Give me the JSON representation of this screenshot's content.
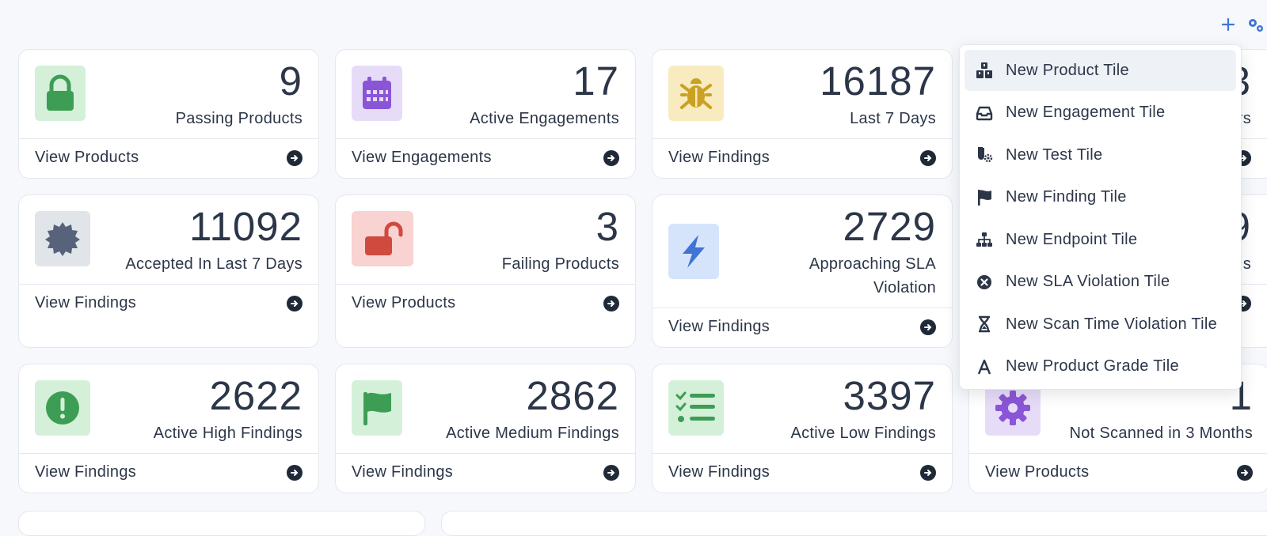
{
  "toolbar": {
    "add_icon": "plus-icon",
    "settings_icon": "gears-icon"
  },
  "tiles": [
    {
      "value": "9",
      "label": "Passing Products",
      "link": "View Products",
      "icon": "lock-icon",
      "icon_bg": "#d4f0d9",
      "icon_color": "#3e9d54"
    },
    {
      "value": "17",
      "label": "Active Engagements",
      "link": "View Engagements",
      "icon": "calendar-icon",
      "icon_bg": "#e7dcf8",
      "icon_color": "#8a55d6"
    },
    {
      "value": "16187",
      "label": "Last 7 Days",
      "link": "View Findings",
      "icon": "bug-icon",
      "icon_bg": "#f7ebbf",
      "icon_color": "#caa123"
    },
    {
      "value": "11092",
      "label": "Accepted In Last 7 Days",
      "link": "View Findings",
      "icon": "certificate-icon",
      "icon_bg": "#e1e4e8",
      "icon_color": "#56637a"
    },
    {
      "value": "3",
      "label": "Failing Products",
      "link": "View Products",
      "icon": "unlock-icon",
      "icon_bg": "#f8d3d1",
      "icon_color": "#d04a3e"
    },
    {
      "value": "2729",
      "label_line1": "Approaching SLA",
      "label_line2": "Violation",
      "link": "View Findings",
      "icon": "bolt-icon",
      "icon_bg": "#d6e4fb",
      "icon_color": "#3f74d6"
    },
    {
      "value": "2622",
      "label": "Active High Findings",
      "link": "View Findings",
      "icon": "exclamation-circle-icon",
      "icon_bg": "#d4f0d9",
      "icon_color": "#3e9d54"
    },
    {
      "value": "2862",
      "label": "Active Medium Findings",
      "link": "View Findings",
      "icon": "flag-icon",
      "icon_bg": "#d4f0d9",
      "icon_color": "#3e9d54"
    },
    {
      "value": "3397",
      "label": "Active Low Findings",
      "link": "View Findings",
      "icon": "list-check-icon",
      "icon_bg": "#d4f0d9",
      "icon_color": "#3e9d54"
    },
    {
      "value": "1",
      "label": "Not Scanned in 3 Months",
      "link": "View Products",
      "icon": "gear-icon",
      "icon_bg": "#e7dcf8",
      "icon_color": "#8a55d6"
    }
  ],
  "partial_tiles": [
    {
      "value_fragment": "3",
      "label_fragment": "rs"
    },
    {
      "value_fragment": "9",
      "label_fragment": "s"
    }
  ],
  "dropdown": {
    "items": [
      {
        "label": "New Product Tile",
        "icon": "cubes-icon",
        "active": true
      },
      {
        "label": "New Engagement Tile",
        "icon": "inbox-icon"
      },
      {
        "label": "New Test Tile",
        "icon": "flask-gear-icon"
      },
      {
        "label": "New Finding Tile",
        "icon": "flag-icon"
      },
      {
        "label": "New Endpoint Tile",
        "icon": "sitemap-icon"
      },
      {
        "label": "New SLA Violation Tile",
        "icon": "x-circle-icon"
      },
      {
        "label": "New Scan Time Violation Tile",
        "icon": "hourglass-icon"
      },
      {
        "label": "New Product Grade Tile",
        "icon": "letter-a-icon"
      }
    ]
  }
}
